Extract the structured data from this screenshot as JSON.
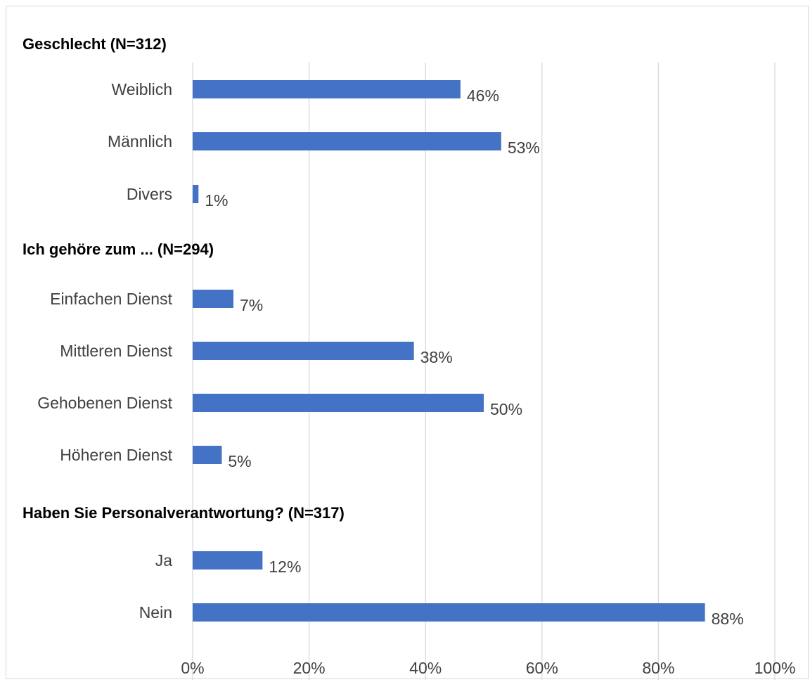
{
  "chart_data": {
    "type": "bar",
    "orientation": "horizontal",
    "bar_color": "#4472c4",
    "grid": true,
    "xlim": [
      0,
      100
    ],
    "x_ticks": [
      "0%",
      "20%",
      "40%",
      "60%",
      "80%",
      "100%"
    ],
    "groups": [
      {
        "title": "Geschlecht (N=312)",
        "categories": [
          "Weiblich",
          "Männlich",
          "Divers"
        ],
        "values": [
          46,
          53,
          1
        ],
        "value_labels": [
          "46%",
          "53%",
          "1%"
        ]
      },
      {
        "title": "Ich gehöre zum ... (N=294)",
        "categories": [
          "Einfachen Dienst",
          "Mittleren Dienst",
          "Gehobenen Dienst",
          "Höheren Dienst"
        ],
        "values": [
          7,
          38,
          50,
          5
        ],
        "value_labels": [
          "7%",
          "38%",
          "50%",
          "5%"
        ]
      },
      {
        "title": "Haben Sie Personalverantwortung? (N=317)",
        "categories": [
          "Ja",
          "Nein"
        ],
        "values": [
          12,
          88
        ],
        "value_labels": [
          "12%",
          "88%"
        ]
      }
    ]
  }
}
